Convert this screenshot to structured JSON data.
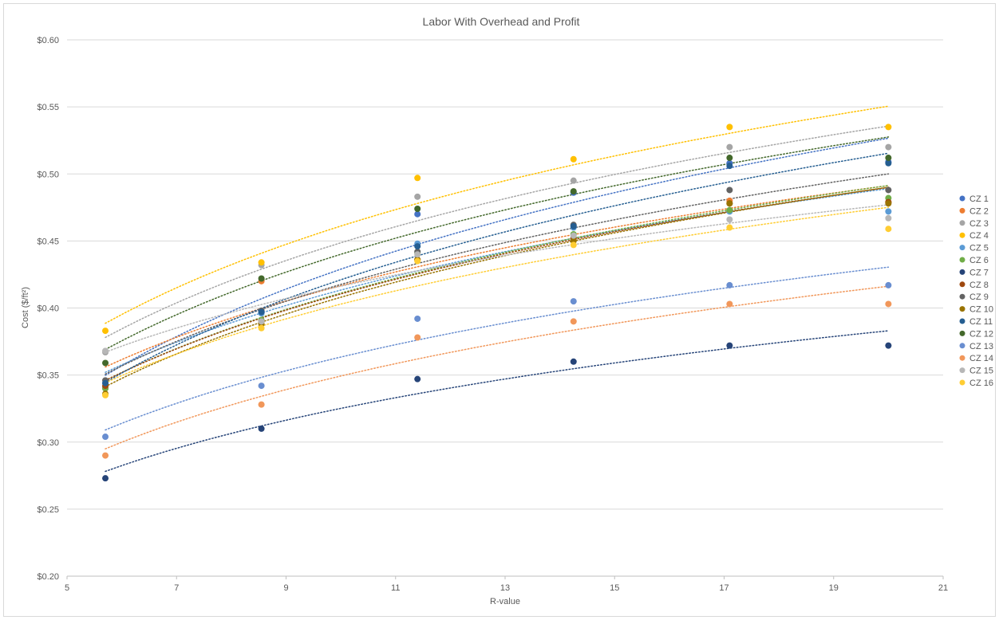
{
  "chart_data": {
    "type": "scatter",
    "title": "Labor With Overhead and Profit",
    "xlabel": "R-value",
    "ylabel": "Cost ($/ft²)",
    "xlim": [
      5,
      21
    ],
    "ylim": [
      0.2,
      0.6
    ],
    "x_ticks": [
      "5",
      "7",
      "9",
      "11",
      "13",
      "15",
      "17",
      "19",
      "21"
    ],
    "y_ticks": [
      "$0.20",
      "$0.25",
      "$0.30",
      "$0.35",
      "$0.40",
      "$0.45",
      "$0.50",
      "$0.55",
      "$0.60"
    ],
    "grid": "horizontal",
    "legend_position": "right",
    "trendline": "logarithmic, dotted",
    "x": [
      5.7,
      8.55,
      11.4,
      14.25,
      17.1,
      20.0
    ],
    "series": [
      {
        "name": "CZ 1",
        "color": "#4472c4",
        "values": [
          0.344,
          0.397,
          0.47,
          0.486,
          0.508,
          0.509
        ]
      },
      {
        "name": "CZ 2",
        "color": "#ed7d31",
        "values": [
          0.34,
          0.42,
          0.436,
          0.452,
          0.48,
          0.479
        ]
      },
      {
        "name": "CZ 3",
        "color": "#a5a5a5",
        "values": [
          0.367,
          0.432,
          0.483,
          0.495,
          0.52,
          0.52
        ]
      },
      {
        "name": "CZ 4",
        "color": "#ffc000",
        "values": [
          0.383,
          0.434,
          0.497,
          0.511,
          0.535,
          0.535
        ]
      },
      {
        "name": "CZ 5",
        "color": "#5b9bd5",
        "values": [
          0.341,
          0.396,
          0.448,
          0.46,
          0.472,
          0.472
        ]
      },
      {
        "name": "CZ 6",
        "color": "#70ad47",
        "values": [
          0.34,
          0.391,
          0.441,
          0.455,
          0.473,
          0.482
        ]
      },
      {
        "name": "CZ 7",
        "color": "#264478",
        "values": [
          0.273,
          0.31,
          0.347,
          0.36,
          0.372,
          0.372
        ]
      },
      {
        "name": "CZ 8",
        "color": "#9e480e",
        "values": [
          0.342,
          0.39,
          0.436,
          0.452,
          0.478,
          0.479
        ]
      },
      {
        "name": "CZ 9",
        "color": "#636363",
        "values": [
          0.346,
          0.398,
          0.442,
          0.462,
          0.488,
          0.488
        ]
      },
      {
        "name": "CZ 10",
        "color": "#997300",
        "values": [
          0.336,
          0.388,
          0.436,
          0.45,
          0.478,
          0.478
        ]
      },
      {
        "name": "CZ 11",
        "color": "#255e91",
        "values": [
          0.344,
          0.397,
          0.446,
          0.461,
          0.506,
          0.508
        ]
      },
      {
        "name": "CZ 12",
        "color": "#43682b",
        "values": [
          0.359,
          0.422,
          0.474,
          0.487,
          0.512,
          0.512
        ]
      },
      {
        "name": "CZ 13",
        "color": "#698ed0",
        "values": [
          0.304,
          0.342,
          0.392,
          0.405,
          0.417,
          0.417
        ]
      },
      {
        "name": "CZ 14",
        "color": "#f1975a",
        "values": [
          0.29,
          0.328,
          0.378,
          0.39,
          0.403,
          0.403
        ]
      },
      {
        "name": "CZ 15",
        "color": "#b7b7b7",
        "values": [
          0.368,
          0.39,
          0.44,
          0.454,
          0.466,
          0.467
        ]
      },
      {
        "name": "CZ 16",
        "color": "#ffcd33",
        "values": [
          0.335,
          0.385,
          0.435,
          0.447,
          0.46,
          0.459
        ]
      }
    ]
  }
}
